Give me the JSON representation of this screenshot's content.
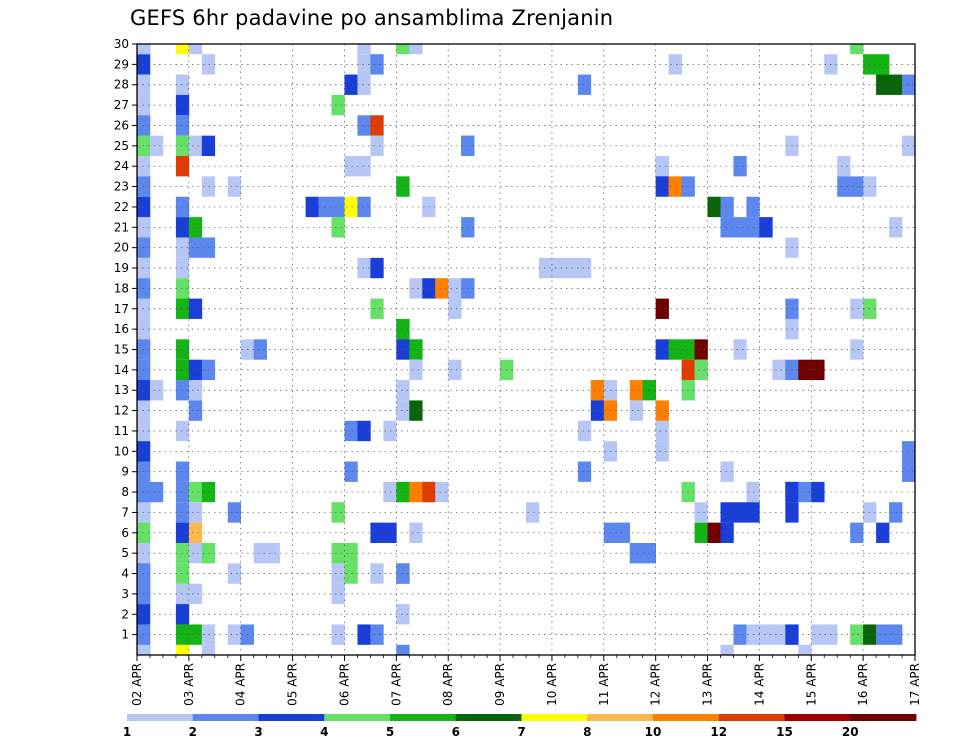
{
  "chart_data": {
    "type": "heatmap",
    "title": "GEFS 6hr padavine po ansamblima Zrenjanin",
    "x_tick_labels": [
      "02 APR",
      "03 APR",
      "04 APR",
      "05 APR",
      "06 APR",
      "07 APR",
      "08 APR",
      "09 APR",
      "10 APR",
      "11 APR",
      "12 APR",
      "13 APR",
      "14 APR",
      "15 APR",
      "16 APR",
      "17 APR"
    ],
    "y_tick_labels": [
      "1",
      "2",
      "3",
      "4",
      "5",
      "6",
      "7",
      "8",
      "9",
      "10",
      "11",
      "12",
      "13",
      "14",
      "15",
      "16",
      "17",
      "18",
      "19",
      "20",
      "21",
      "22",
      "23",
      "24",
      "25",
      "26",
      "27",
      "28",
      "29",
      "30"
    ],
    "x_range": [
      "02 APR 00Z",
      "17 APR 00Z"
    ],
    "time_step_hours": 6,
    "y_range": [
      0,
      30
    ],
    "grid": "dotted",
    "colorbar": {
      "labels": [
        "1",
        "2",
        "3",
        "4",
        "5",
        "6",
        "7",
        "8",
        "10",
        "12",
        "15",
        "20"
      ],
      "colors": [
        "#b7c7f5",
        "#5b87ee",
        "#1a3fd9",
        "#66e066",
        "#14b414",
        "#0a640a",
        "#ffff00",
        "#ffb84d",
        "#ff7f00",
        "#e03c00",
        "#a00000",
        "#6e0000"
      ]
    },
    "cells": [
      [
        0,
        30,
        2
      ],
      [
        0,
        29,
        3
      ],
      [
        0,
        28,
        1
      ],
      [
        0,
        27,
        1
      ],
      [
        0,
        26,
        2
      ],
      [
        0,
        25,
        2
      ],
      [
        0,
        24,
        1
      ],
      [
        0,
        23,
        1
      ],
      [
        0,
        22,
        3
      ],
      [
        0,
        21,
        3
      ],
      [
        0,
        20,
        2
      ],
      [
        0,
        19,
        1
      ],
      [
        0,
        18,
        2
      ],
      [
        0,
        17,
        1
      ],
      [
        0,
        16,
        1
      ],
      [
        0,
        15,
        2
      ],
      [
        0,
        14,
        2
      ],
      [
        0,
        13,
        3
      ],
      [
        0,
        12,
        1
      ],
      [
        0,
        11,
        1
      ],
      [
        0,
        10,
        3
      ],
      [
        0,
        9,
        2
      ],
      [
        0,
        8,
        3
      ],
      [
        0,
        7,
        3
      ],
      [
        0,
        6,
        4
      ],
      [
        0,
        5,
        1
      ],
      [
        0,
        4,
        2
      ],
      [
        0,
        3,
        2
      ],
      [
        0,
        2,
        3
      ],
      [
        0,
        1,
        2
      ],
      [
        0,
        0,
        3
      ],
      [
        1,
        30,
        1
      ],
      [
        1,
        25,
        4
      ],
      [
        1,
        23,
        2
      ],
      [
        1,
        21,
        1
      ],
      [
        1,
        13,
        3
      ],
      [
        1,
        8,
        2
      ],
      [
        1,
        7,
        1
      ],
      [
        1,
        4,
        2
      ],
      [
        1,
        3,
        2
      ],
      [
        1,
        0,
        1
      ],
      [
        2,
        25,
        1
      ],
      [
        2,
        13,
        1
      ],
      [
        2,
        8,
        2
      ],
      [
        4,
        30,
        7
      ],
      [
        4,
        28,
        1
      ],
      [
        4,
        27,
        3
      ],
      [
        4,
        26,
        2
      ],
      [
        4,
        25,
        4
      ],
      [
        4,
        24,
        10
      ],
      [
        4,
        22,
        2
      ],
      [
        4,
        21,
        3
      ],
      [
        4,
        20,
        1
      ],
      [
        4,
        19,
        1
      ],
      [
        4,
        18,
        4
      ],
      [
        4,
        17,
        5
      ],
      [
        4,
        15,
        5
      ],
      [
        4,
        14,
        5
      ],
      [
        4,
        13,
        2
      ],
      [
        4,
        11,
        1
      ],
      [
        4,
        9,
        2
      ],
      [
        4,
        8,
        2
      ],
      [
        4,
        7,
        2
      ],
      [
        4,
        6,
        3
      ],
      [
        4,
        5,
        4
      ],
      [
        4,
        4,
        4
      ],
      [
        4,
        3,
        1
      ],
      [
        4,
        2,
        3
      ],
      [
        4,
        1,
        5
      ],
      [
        4,
        0,
        7
      ],
      [
        5,
        30,
        1
      ],
      [
        5,
        25,
        1
      ],
      [
        5,
        21,
        5
      ],
      [
        5,
        20,
        2
      ],
      [
        5,
        17,
        3
      ],
      [
        5,
        14,
        3
      ],
      [
        5,
        13,
        1
      ],
      [
        5,
        12,
        2
      ],
      [
        5,
        8,
        4
      ],
      [
        5,
        7,
        1
      ],
      [
        5,
        6,
        8
      ],
      [
        5,
        5,
        1
      ],
      [
        5,
        3,
        1
      ],
      [
        5,
        1,
        5
      ],
      [
        6,
        29,
        1
      ],
      [
        6,
        25,
        3
      ],
      [
        6,
        23,
        1
      ],
      [
        6,
        20,
        2
      ],
      [
        6,
        14,
        2
      ],
      [
        6,
        8,
        5
      ],
      [
        6,
        5,
        4
      ],
      [
        6,
        1,
        1
      ],
      [
        7,
        0,
        1
      ],
      [
        9,
        23,
        1
      ],
      [
        9,
        7,
        2
      ],
      [
        9,
        4,
        1
      ],
      [
        9,
        1,
        1
      ],
      [
        10,
        15,
        1
      ],
      [
        10,
        1,
        2
      ],
      [
        11,
        15,
        2
      ],
      [
        11,
        5,
        1
      ],
      [
        12,
        5,
        1
      ],
      [
        16,
        22,
        3
      ],
      [
        17,
        22,
        2
      ],
      [
        18,
        22,
        2
      ],
      [
        18,
        7,
        7
      ],
      [
        18,
        4,
        1
      ],
      [
        18,
        1,
        1
      ],
      [
        19,
        27,
        4
      ],
      [
        19,
        22,
        2
      ],
      [
        19,
        21,
        4
      ],
      [
        19,
        7,
        4
      ],
      [
        19,
        5,
        4
      ],
      [
        19,
        4,
        1
      ],
      [
        19,
        3,
        1
      ],
      [
        20,
        28,
        3
      ],
      [
        20,
        24,
        1
      ],
      [
        20,
        22,
        7
      ],
      [
        20,
        11,
        2
      ],
      [
        20,
        9,
        2
      ],
      [
        20,
        4,
        4
      ],
      [
        20,
        5,
        4
      ],
      [
        21,
        30,
        1
      ],
      [
        21,
        29,
        1
      ],
      [
        21,
        28,
        1
      ],
      [
        21,
        26,
        2
      ],
      [
        21,
        24,
        1
      ],
      [
        21,
        22,
        2
      ],
      [
        21,
        19,
        1
      ],
      [
        21,
        11,
        3
      ],
      [
        21,
        1,
        3
      ],
      [
        22,
        29,
        2
      ],
      [
        22,
        26,
        10
      ],
      [
        22,
        25,
        1
      ],
      [
        22,
        19,
        3
      ],
      [
        22,
        17,
        4
      ],
      [
        22,
        6,
        3
      ],
      [
        22,
        4,
        1
      ],
      [
        22,
        1,
        2
      ],
      [
        23,
        11,
        1
      ],
      [
        23,
        6,
        3
      ],
      [
        23,
        8,
        1
      ],
      [
        24,
        30,
        4
      ],
      [
        24,
        23,
        1
      ],
      [
        24,
        16,
        1
      ],
      [
        24,
        12,
        1
      ],
      [
        24,
        8,
        1
      ],
      [
        24,
        4,
        2
      ],
      [
        25,
        30,
        4
      ],
      [
        25,
        23,
        5
      ],
      [
        25,
        16,
        5
      ],
      [
        25,
        15,
        3
      ],
      [
        25,
        13,
        1
      ],
      [
        25,
        8,
        5
      ],
      [
        25,
        4,
        2
      ],
      [
        25,
        2,
        1
      ],
      [
        25,
        0,
        2
      ],
      [
        26,
        30,
        1
      ],
      [
        26,
        18,
        1
      ],
      [
        26,
        15,
        5
      ],
      [
        26,
        14,
        1
      ],
      [
        26,
        12,
        6
      ],
      [
        26,
        8,
        9
      ],
      [
        26,
        6,
        1
      ],
      [
        27,
        22,
        1
      ],
      [
        27,
        18,
        3
      ],
      [
        27,
        8,
        10
      ],
      [
        28,
        18,
        9
      ],
      [
        28,
        8,
        1
      ],
      [
        29,
        18,
        1
      ],
      [
        29,
        17,
        1
      ],
      [
        29,
        14,
        1
      ],
      [
        30,
        25,
        2
      ],
      [
        30,
        21,
        2
      ],
      [
        30,
        18,
        2
      ],
      [
        31,
        25,
        2
      ],
      [
        34,
        14,
        4
      ],
      [
        37,
        7,
        1
      ],
      [
        38,
        19,
        1
      ],
      [
        39,
        19,
        1
      ],
      [
        40,
        19,
        1
      ],
      [
        41,
        28,
        2
      ],
      [
        41,
        19,
        1
      ],
      [
        41,
        11,
        1
      ],
      [
        41,
        9,
        2
      ],
      [
        42,
        13,
        2
      ],
      [
        43,
        13,
        9
      ],
      [
        43,
        12,
        3
      ],
      [
        44,
        13,
        1
      ],
      [
        44,
        12,
        9
      ],
      [
        44,
        6,
        2
      ],
      [
        44,
        10,
        1
      ],
      [
        45,
        6,
        2
      ],
      [
        46,
        13,
        9
      ],
      [
        46,
        12,
        1
      ],
      [
        46,
        5,
        2
      ],
      [
        47,
        13,
        5
      ],
      [
        47,
        5,
        2
      ],
      [
        48,
        24,
        3
      ],
      [
        48,
        17,
        12
      ],
      [
        48,
        11,
        1
      ],
      [
        48,
        10,
        1
      ],
      [
        49,
        24,
        1
      ],
      [
        49,
        23,
        3
      ],
      [
        49,
        15,
        3
      ],
      [
        49,
        12,
        9
      ],
      [
        50,
        23,
        9
      ],
      [
        50,
        15,
        5
      ],
      [
        50,
        29,
        1
      ],
      [
        51,
        23,
        2
      ],
      [
        51,
        15,
        5
      ],
      [
        51,
        14,
        10
      ],
      [
        51,
        13,
        4
      ],
      [
        51,
        8,
        4
      ],
      [
        52,
        15,
        13
      ],
      [
        52,
        14,
        4
      ],
      [
        52,
        6,
        5
      ],
      [
        52,
        7,
        1
      ],
      [
        53,
        22,
        6
      ],
      [
        53,
        6,
        12
      ],
      [
        54,
        22,
        2
      ],
      [
        54,
        9,
        1
      ],
      [
        54,
        7,
        3
      ],
      [
        54,
        6,
        3
      ],
      [
        55,
        21,
        2
      ],
      [
        55,
        0,
        1
      ],
      [
        56,
        21,
        2
      ],
      [
        56,
        24,
        2
      ],
      [
        56,
        15,
        1
      ],
      [
        56,
        7,
        3
      ],
      [
        56,
        1,
        2
      ],
      [
        57,
        21,
        2
      ],
      [
        57,
        22,
        2
      ],
      [
        57,
        8,
        1
      ],
      [
        57,
        7,
        3
      ],
      [
        57,
        1,
        1
      ],
      [
        58,
        21,
        3
      ],
      [
        58,
        1,
        1
      ],
      [
        59,
        14,
        1
      ],
      [
        59,
        1,
        1
      ],
      [
        60,
        20,
        1
      ],
      [
        60,
        8,
        3
      ],
      [
        60,
        7,
        3
      ],
      [
        60,
        1,
        1
      ],
      [
        61,
        25,
        1
      ],
      [
        61,
        16,
        1
      ],
      [
        61,
        17,
        2
      ],
      [
        61,
        14,
        2
      ],
      [
        61,
        8,
        3
      ],
      [
        61,
        1,
        3
      ],
      [
        62,
        14,
        13
      ],
      [
        62,
        8,
        2
      ],
      [
        62,
        0,
        1
      ],
      [
        63,
        14,
        13
      ],
      [
        63,
        8,
        3
      ],
      [
        63,
        1,
        1
      ],
      [
        64,
        29,
        1
      ],
      [
        64,
        1,
        1
      ],
      [
        65,
        24,
        1
      ],
      [
        65,
        23,
        2
      ],
      [
        66,
        30,
        1
      ],
      [
        67,
        30,
        4
      ],
      [
        67,
        23,
        2
      ],
      [
        67,
        17,
        1
      ],
      [
        67,
        15,
        1
      ],
      [
        67,
        6,
        2
      ],
      [
        67,
        1,
        4
      ],
      [
        68,
        29,
        5
      ],
      [
        68,
        23,
        1
      ],
      [
        68,
        17,
        4
      ],
      [
        68,
        7,
        1
      ],
      [
        68,
        1,
        6
      ],
      [
        69,
        29,
        5
      ],
      [
        69,
        28,
        6
      ],
      [
        69,
        6,
        3
      ],
      [
        69,
        1,
        2
      ],
      [
        70,
        28,
        6
      ],
      [
        70,
        21,
        1
      ],
      [
        70,
        7,
        2
      ],
      [
        70,
        1,
        2
      ],
      [
        71,
        28,
        2
      ],
      [
        71,
        25,
        1
      ],
      [
        71,
        10,
        2
      ],
      [
        71,
        9,
        2
      ],
      [
        72,
        29,
        1
      ],
      [
        72,
        18,
        2
      ],
      [
        72,
        7,
        2
      ],
      [
        72,
        8,
        2
      ],
      [
        72,
        9,
        2
      ],
      [
        72,
        10,
        2
      ],
      [
        72,
        11,
        1
      ],
      [
        72,
        12,
        1
      ]
    ]
  }
}
